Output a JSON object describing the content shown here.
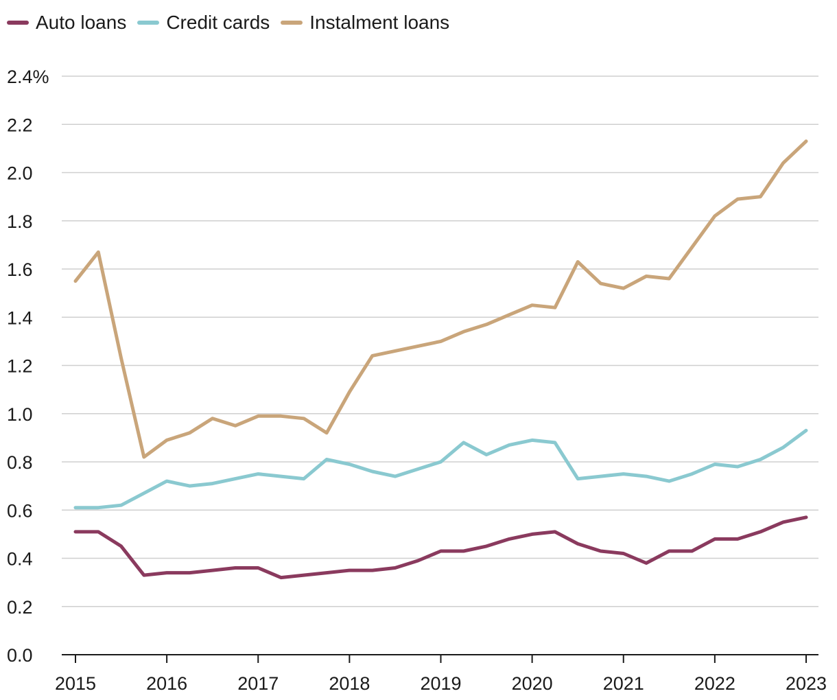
{
  "chart_data": {
    "type": "line",
    "title": "",
    "xlabel": "",
    "ylabel": "",
    "ylim": [
      0,
      2.4
    ],
    "yticks": [
      0,
      0.2,
      0.4,
      0.6,
      0.8,
      1.0,
      1.2,
      1.4,
      1.6,
      1.8,
      2.0,
      2.2,
      2.4
    ],
    "ytick_labels": [
      "0.0",
      "0.2",
      "0.4",
      "0.6",
      "0.8",
      "1.0",
      "1.2",
      "1.4",
      "1.6",
      "1.8",
      "2.0",
      "2.2",
      "2.4%"
    ],
    "xlim": [
      2015,
      2023
    ],
    "xticks": [
      2015,
      2016,
      2017,
      2018,
      2019,
      2020,
      2021,
      2022,
      2023
    ],
    "xtick_labels": [
      "2015",
      "2016",
      "2017",
      "2018",
      "2019",
      "2020",
      "2021",
      "2022",
      "2023"
    ],
    "grid": "horizontal",
    "legend_position": "top-left",
    "x": [
      2015.0,
      2015.25,
      2015.5,
      2015.75,
      2016.0,
      2016.25,
      2016.5,
      2016.75,
      2017.0,
      2017.25,
      2017.5,
      2017.75,
      2018.0,
      2018.25,
      2018.5,
      2018.75,
      2019.0,
      2019.25,
      2019.5,
      2019.75,
      2020.0,
      2020.25,
      2020.5,
      2020.75,
      2021.0,
      2021.25,
      2021.5,
      2021.75,
      2022.0,
      2022.25,
      2022.5,
      2022.75,
      2023.0
    ],
    "series": [
      {
        "name": "Auto loans",
        "color": "#8a3a5e",
        "values": [
          0.51,
          0.51,
          0.45,
          0.33,
          0.34,
          0.34,
          0.35,
          0.36,
          0.36,
          0.32,
          0.33,
          0.34,
          0.35,
          0.35,
          0.36,
          0.39,
          0.43,
          0.43,
          0.45,
          0.48,
          0.5,
          0.51,
          0.46,
          0.43,
          0.42,
          0.38,
          0.43,
          0.43,
          0.48,
          0.48,
          0.51,
          0.55,
          0.57
        ]
      },
      {
        "name": "Credit cards",
        "color": "#8ac9d0",
        "values": [
          0.61,
          0.61,
          0.62,
          0.67,
          0.72,
          0.7,
          0.71,
          0.73,
          0.75,
          0.74,
          0.73,
          0.81,
          0.79,
          0.76,
          0.74,
          0.77,
          0.8,
          0.88,
          0.83,
          0.87,
          0.89,
          0.88,
          0.73,
          0.74,
          0.75,
          0.74,
          0.72,
          0.75,
          0.79,
          0.78,
          0.81,
          0.86,
          0.93
        ]
      },
      {
        "name": "Instalment loans",
        "color": "#c9a57a",
        "values": [
          1.55,
          1.67,
          1.23,
          0.82,
          0.89,
          0.92,
          0.98,
          0.95,
          0.99,
          0.99,
          0.98,
          0.92,
          1.09,
          1.24,
          1.26,
          1.28,
          1.3,
          1.34,
          1.37,
          1.41,
          1.45,
          1.44,
          1.63,
          1.54,
          1.52,
          1.57,
          1.56,
          1.69,
          1.82,
          1.89,
          1.9,
          2.04,
          2.13
        ]
      }
    ]
  }
}
